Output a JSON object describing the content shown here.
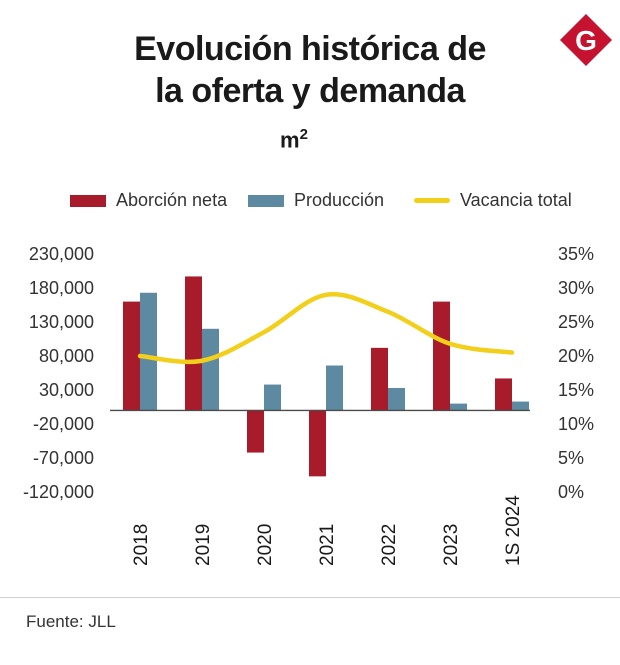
{
  "title_line1": "Evolución histórica de",
  "title_line2": "la oferta y demanda",
  "unit": "m",
  "unit_exp": "2",
  "logo_letter": "G",
  "logo_color": "#c4122f",
  "source": "Fuente: JLL",
  "chart_data": {
    "type": "bar",
    "title": "Evolución histórica de la oferta y demanda",
    "ylabel": "m²",
    "ylim": [
      -120000,
      230000
    ],
    "yticks": [
      "230,000",
      "180,000",
      "130,000",
      "80,000",
      "30,000",
      "-20,000",
      "-70,000",
      "-120,000"
    ],
    "y2lim": [
      0,
      35
    ],
    "y2ticks": [
      "35%",
      "30%",
      "25%",
      "20%",
      "15%",
      "10%",
      "5%",
      "0%"
    ],
    "categories": [
      "2018",
      "2019",
      "2020",
      "2021",
      "2022",
      "2023",
      "1S 2024"
    ],
    "series": [
      {
        "name": "Aborción neta",
        "color": "#a81b2b",
        "values": [
          160000,
          197000,
          -62000,
          -97000,
          92000,
          160000,
          47000
        ]
      },
      {
        "name": "Producción",
        "color": "#5e8aa1",
        "values": [
          173000,
          120000,
          38000,
          66000,
          33000,
          10000,
          13000
        ]
      }
    ],
    "line_series": {
      "name": "Vacancia total",
      "color": "#f2cf1b",
      "axis": "right",
      "values": [
        20.0,
        19.3,
        23.5,
        29.0,
        26.5,
        21.8,
        20.5
      ]
    }
  }
}
